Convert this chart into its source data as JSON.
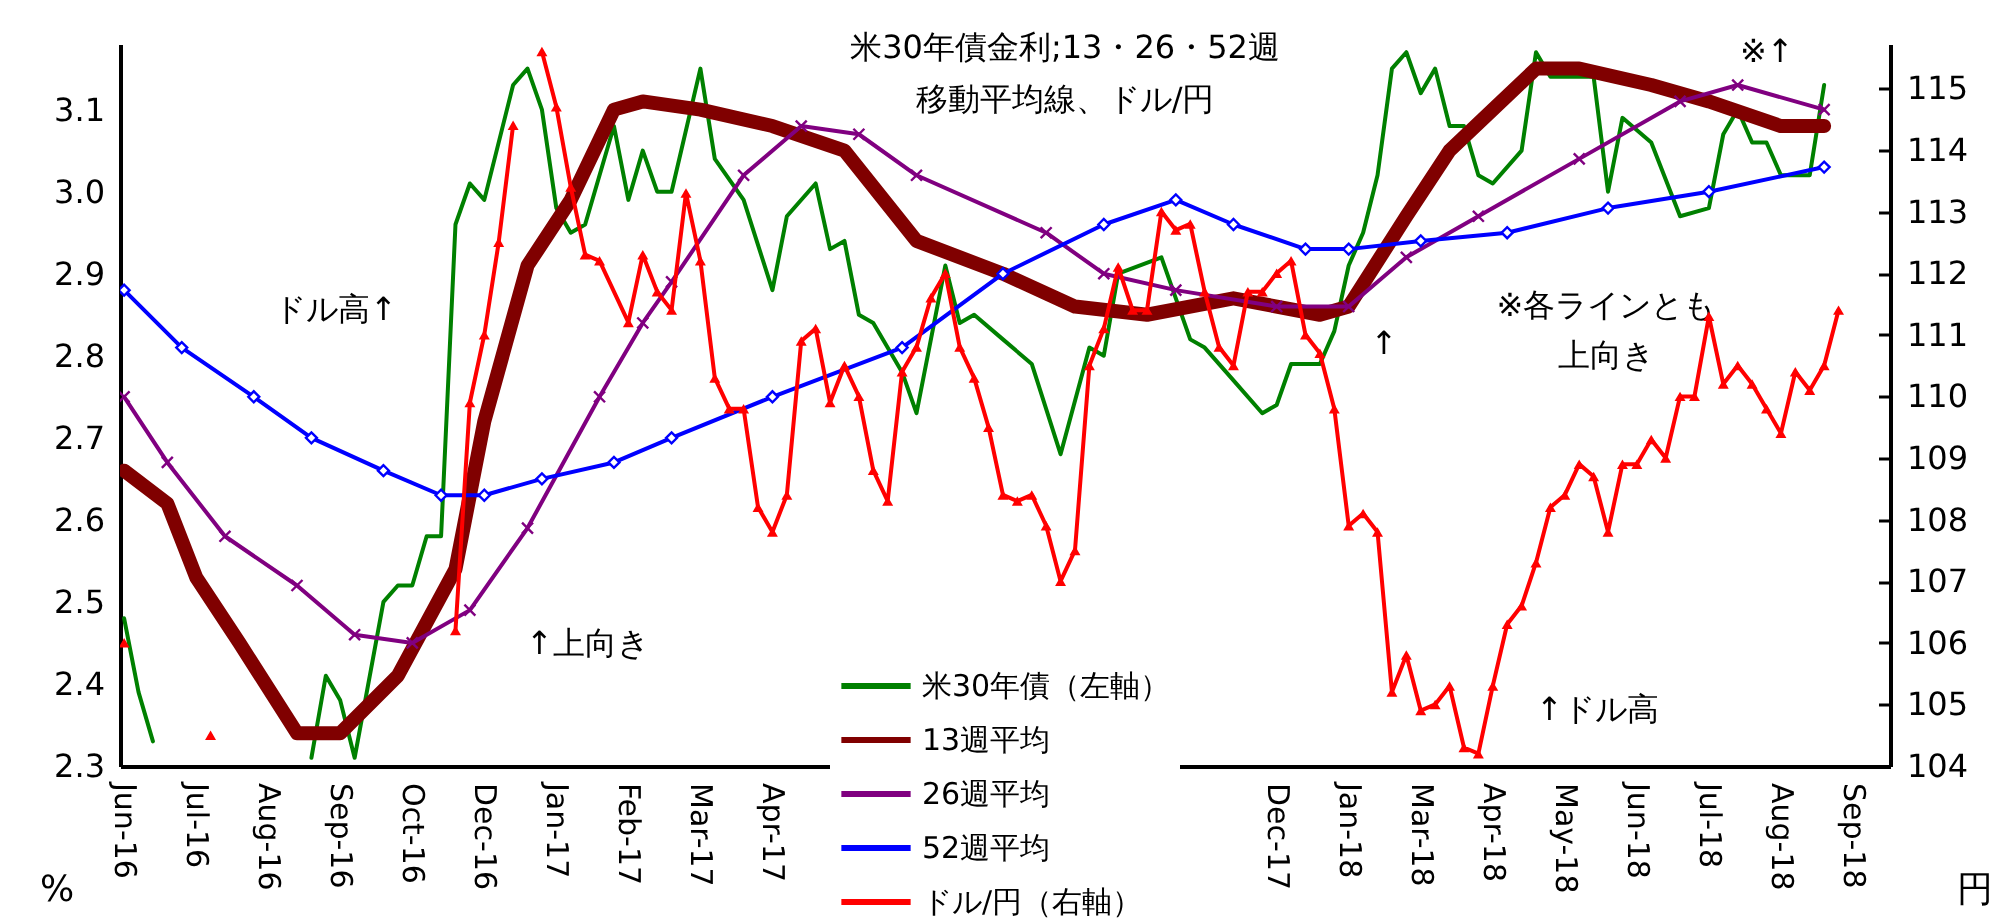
{
  "chart_data": {
    "type": "line",
    "title": "米30年債金利;13・26・52週移動平均線、ドル/円",
    "ylabel": "%",
    "y2label": "円",
    "legend": "bottom",
    "xlim": [
      "2016-06-08",
      "2018-10-16"
    ],
    "xticks": [
      {
        "value": "2016-06-10",
        "label": "Jun-16"
      },
      {
        "value": "2016-07-15",
        "label": "Jul-16"
      },
      {
        "value": "2016-08-19",
        "label": "Aug-16"
      },
      {
        "value": "2016-09-23",
        "label": "Sep-16"
      },
      {
        "value": "2016-10-28",
        "label": "Oct-16"
      },
      {
        "value": "2016-12-02",
        "label": "Dec-16"
      },
      {
        "value": "2017-01-06",
        "label": "Jan-17"
      },
      {
        "value": "2017-02-10",
        "label": "Feb-17"
      },
      {
        "value": "2017-03-17",
        "label": "Mar-17"
      },
      {
        "value": "2017-04-21",
        "label": "Apr-17"
      },
      {
        "value": "2017-12-22",
        "label": "Dec-17"
      },
      {
        "value": "2018-01-26",
        "label": "Jan-18"
      },
      {
        "value": "2018-03-02",
        "label": "Mar-18"
      },
      {
        "value": "2018-04-06",
        "label": "Apr-18"
      },
      {
        "value": "2018-05-11",
        "label": "May-18"
      },
      {
        "value": "2018-06-15",
        "label": "Jun-18"
      },
      {
        "value": "2018-07-20",
        "label": "Jul-18"
      },
      {
        "value": "2018-08-24",
        "label": "Aug-18"
      },
      {
        "value": "2018-09-28",
        "label": "Sep-18"
      }
    ],
    "ylim": [
      2.3,
      3.18
    ],
    "yticks": [
      2.3,
      2.4,
      2.5,
      2.6,
      2.7,
      2.8,
      2.9,
      {
        "value": 3,
        "label": "3.0"
      },
      3.1
    ],
    "y2lim": [
      104,
      115.72
    ],
    "y2ticks": [
      104,
      105,
      106,
      107,
      108,
      109,
      110,
      111,
      112,
      113,
      114,
      115
    ],
    "annotations": [
      "ドル高↑",
      "↑上向き",
      "↑",
      "※各ラインとも上向き",
      "↑ドル高",
      "※↑"
    ],
    "series": [
      {
        "name": "米30年債（左軸）",
        "color": "#008000",
        "marker": "none",
        "x": [
          "2016-06-10",
          "2016-06-17",
          "2016-06-24",
          "2016-07-01",
          "2016-09-09",
          "2016-09-16",
          "2016-09-23",
          "2016-09-30",
          "2016-10-14",
          "2016-10-21",
          "2016-10-28",
          "2016-11-04",
          "2016-11-11",
          "2016-11-18",
          "2016-11-25",
          "2016-12-02",
          "2016-12-16",
          "2016-12-23",
          "2016-12-30",
          "2017-01-06",
          "2017-01-13",
          "2017-01-20",
          "2017-02-03",
          "2017-02-10",
          "2017-02-17",
          "2017-02-24",
          "2017-03-03",
          "2017-03-17",
          "2017-03-24",
          "2017-04-07",
          "2017-04-21",
          "2017-04-28",
          "2017-05-12",
          "2017-05-19",
          "2017-05-26",
          "2017-06-02",
          "2017-06-09",
          "2017-06-23",
          "2017-06-30",
          "2017-07-14",
          "2017-07-21",
          "2017-07-28",
          "2017-08-11",
          "2017-08-25",
          "2017-09-08",
          "2017-09-22",
          "2017-09-29",
          "2017-10-06",
          "2017-10-27",
          "2017-11-10",
          "2017-11-17",
          "2017-12-01",
          "2017-12-15",
          "2017-12-22",
          "2017-12-29",
          "2018-01-12",
          "2018-01-19",
          "2018-01-26",
          "2018-02-02",
          "2018-02-09",
          "2018-02-16",
          "2018-02-23",
          "2018-03-02",
          "2018-03-09",
          "2018-03-16",
          "2018-03-23",
          "2018-03-30",
          "2018-04-06",
          "2018-04-20",
          "2018-04-27",
          "2018-05-04",
          "2018-05-11",
          "2018-05-25",
          "2018-06-01",
          "2018-06-08",
          "2018-06-22",
          "2018-07-06",
          "2018-07-20",
          "2018-07-27",
          "2018-08-03",
          "2018-08-10",
          "2018-08-17",
          "2018-08-24",
          "2018-09-07",
          "2018-09-14"
        ],
        "values": [
          2.48,
          2.39,
          2.33,
          null,
          2.31,
          2.41,
          2.38,
          2.31,
          2.5,
          2.52,
          2.52,
          2.58,
          2.58,
          2.96,
          3.01,
          2.99,
          3.13,
          3.15,
          3.1,
          2.98,
          2.95,
          2.96,
          3.08,
          2.99,
          3.05,
          3,
          3,
          3.15,
          3.04,
          2.99,
          2.88,
          2.97,
          3.01,
          2.93,
          2.94,
          2.85,
          2.84,
          2.78,
          2.73,
          2.91,
          2.84,
          2.85,
          2.82,
          2.79,
          2.68,
          2.81,
          2.8,
          2.9,
          2.92,
          2.82,
          2.81,
          2.77,
          2.73,
          2.74,
          2.79,
          2.79,
          2.83,
          2.91,
          2.95,
          3.02,
          3.15,
          3.17,
          3.12,
          3.15,
          3.08,
          3.08,
          3.02,
          3.01,
          3.05,
          3.17,
          3.14,
          3.14,
          3.14,
          3,
          3.09,
          3.06,
          2.97,
          2.98,
          3.07,
          3.1,
          3.06,
          3.06,
          3.02,
          3.02,
          3.13
        ]
      },
      {
        "name": "13週平均",
        "color": "#800000",
        "marker": "none",
        "x": [
          "2016-06-10",
          "2016-07-01",
          "2016-07-15",
          "2016-08-05",
          "2016-09-02",
          "2016-09-23",
          "2016-10-21",
          "2016-11-18",
          "2016-12-02",
          "2016-12-23",
          "2017-01-13",
          "2017-02-03",
          "2017-02-17",
          "2017-03-17",
          "2017-04-21",
          "2017-05-26",
          "2017-06-30",
          "2017-08-11",
          "2017-09-15",
          "2017-10-20",
          "2017-12-01",
          "2018-01-12",
          "2018-01-26",
          "2018-02-23",
          "2018-03-16",
          "2018-04-06",
          "2018-04-27",
          "2018-05-18",
          "2018-06-22",
          "2018-07-20",
          "2018-08-24",
          "2018-09-14"
        ],
        "values": [
          2.66,
          2.62,
          2.53,
          2.45,
          2.34,
          2.34,
          2.41,
          2.54,
          2.72,
          2.91,
          2.99,
          3.1,
          3.11,
          3.1,
          3.08,
          3.05,
          2.94,
          2.9,
          2.86,
          2.85,
          2.87,
          2.85,
          2.86,
          2.97,
          3.05,
          3.1,
          3.15,
          3.15,
          3.13,
          3.11,
          3.08,
          3.08
        ]
      },
      {
        "name": "26週平均",
        "color": "#800080",
        "marker": "cross",
        "x": [
          "2016-06-10",
          "2016-07-01",
          "2016-07-29",
          "2016-09-02",
          "2016-09-30",
          "2016-10-28",
          "2016-11-25",
          "2016-12-23",
          "2017-01-27",
          "2017-02-17",
          "2017-03-03",
          "2017-04-07",
          "2017-05-05",
          "2017-06-02",
          "2017-06-30",
          "2017-09-01",
          "2017-09-29",
          "2017-11-03",
          "2017-12-22",
          "2018-01-26",
          "2018-02-23",
          "2018-03-30",
          "2018-05-18",
          "2018-07-06",
          "2018-08-03",
          "2018-09-14"
        ],
        "values": [
          2.75,
          2.67,
          2.58,
          2.52,
          2.46,
          2.45,
          2.49,
          2.59,
          2.75,
          2.84,
          2.89,
          3.02,
          3.08,
          3.07,
          3.02,
          2.95,
          2.9,
          2.88,
          2.86,
          2.86,
          2.92,
          2.97,
          3.04,
          3.11,
          3.13,
          3.1
        ]
      },
      {
        "name": "52週平均",
        "color": "#0000ff",
        "marker": "diamond",
        "x": [
          "2016-06-10",
          "2016-07-08",
          "2016-08-12",
          "2016-09-09",
          "2016-10-14",
          "2016-11-11",
          "2016-12-02",
          "2016-12-30",
          "2017-02-03",
          "2017-03-03",
          "2017-04-21",
          "2017-06-23",
          "2017-08-11",
          "2017-09-29",
          "2017-11-03",
          "2017-12-01",
          "2018-01-05",
          "2018-01-26",
          "2018-03-02",
          "2018-04-13",
          "2018-06-01",
          "2018-07-20",
          "2018-09-14"
        ],
        "values": [
          2.88,
          2.81,
          2.75,
          2.7,
          2.66,
          2.63,
          2.63,
          2.65,
          2.67,
          2.7,
          2.75,
          2.81,
          2.9,
          2.96,
          2.99,
          2.96,
          2.93,
          2.93,
          2.94,
          2.95,
          2.98,
          3,
          3.03
        ]
      },
      {
        "name": "ドル/円（右軸）",
        "color": "#ff0000",
        "marker": "triangle",
        "axis": "y2",
        "x": [
          "2016-06-10",
          "2016-06-17",
          "2016-07-22",
          "2016-07-29",
          "2016-11-18",
          "2016-11-25",
          "2016-12-02",
          "2016-12-09",
          "2016-12-16",
          "2016-12-23",
          "2016-12-30",
          "2017-01-06",
          "2017-01-13",
          "2017-01-20",
          "2017-01-27",
          "2017-02-10",
          "2017-02-17",
          "2017-02-24",
          "2017-03-03",
          "2017-03-10",
          "2017-03-17",
          "2017-03-24",
          "2017-03-31",
          "2017-04-07",
          "2017-04-14",
          "2017-04-21",
          "2017-04-28",
          "2017-05-05",
          "2017-05-12",
          "2017-05-19",
          "2017-05-26",
          "2017-06-02",
          "2017-06-09",
          "2017-06-16",
          "2017-06-23",
          "2017-06-30",
          "2017-07-07",
          "2017-07-14",
          "2017-07-21",
          "2017-07-28",
          "2017-08-04",
          "2017-08-11",
          "2017-08-18",
          "2017-08-25",
          "2017-09-01",
          "2017-09-08",
          "2017-09-15",
          "2017-09-22",
          "2017-09-29",
          "2017-10-06",
          "2017-10-13",
          "2017-10-20",
          "2017-10-27",
          "2017-11-03",
          "2017-11-10",
          "2017-11-17",
          "2017-11-24",
          "2017-12-01",
          "2017-12-08",
          "2017-12-15",
          "2017-12-22",
          "2017-12-29",
          "2018-01-05",
          "2018-01-12",
          "2018-01-19",
          "2018-01-26",
          "2018-02-02",
          "2018-02-09",
          "2018-02-16",
          "2018-02-23",
          "2018-03-02",
          "2018-03-09",
          "2018-03-16",
          "2018-03-23",
          "2018-03-30",
          "2018-04-06",
          "2018-04-13",
          "2018-04-20",
          "2018-04-27",
          "2018-05-04",
          "2018-05-11",
          "2018-05-18",
          "2018-05-25",
          "2018-06-01",
          "2018-06-08",
          "2018-06-15",
          "2018-06-22",
          "2018-06-29",
          "2018-07-06",
          "2018-07-13",
          "2018-07-20",
          "2018-07-27",
          "2018-08-03",
          "2018-08-10",
          "2018-08-17",
          "2018-08-24",
          "2018-08-31",
          "2018-09-07",
          "2018-09-14",
          "2018-09-21"
        ],
        "values": [
          106,
          null,
          104.5,
          null,
          106.2,
          109.9,
          111,
          112.5,
          114.4,
          null,
          115.6,
          114.7,
          113.4,
          112.3,
          112.2,
          111.2,
          112.3,
          111.7,
          111.4,
          113.3,
          112.2,
          110.3,
          109.8,
          109.8,
          108.2,
          107.8,
          108.4,
          110.9,
          111.1,
          109.9,
          110.5,
          110,
          108.8,
          108.3,
          110.4,
          110.8,
          111.6,
          112,
          110.8,
          110.3,
          109.5,
          108.4,
          108.3,
          108.4,
          107.9,
          107,
          107.5,
          110.5,
          111.1,
          112.1,
          111.4,
          111.4,
          113,
          112.7,
          112.8,
          111.7,
          110.8,
          110.5,
          111.7,
          111.7,
          112,
          112.2,
          111,
          110.7,
          109.8,
          107.9,
          108.1,
          107.8,
          105.2,
          105.8,
          104.9,
          105,
          105.3,
          104.3,
          104.2,
          105.3,
          106.3,
          106.6,
          107.3,
          108.2,
          108.4,
          108.9,
          108.7,
          107.8,
          108.9,
          108.9,
          109.3,
          109,
          110,
          110,
          111.3,
          110.2,
          110.5,
          110.2,
          109.8,
          109.4,
          110.4,
          110.1,
          110.5,
          111.4
        ]
      }
    ]
  }
}
